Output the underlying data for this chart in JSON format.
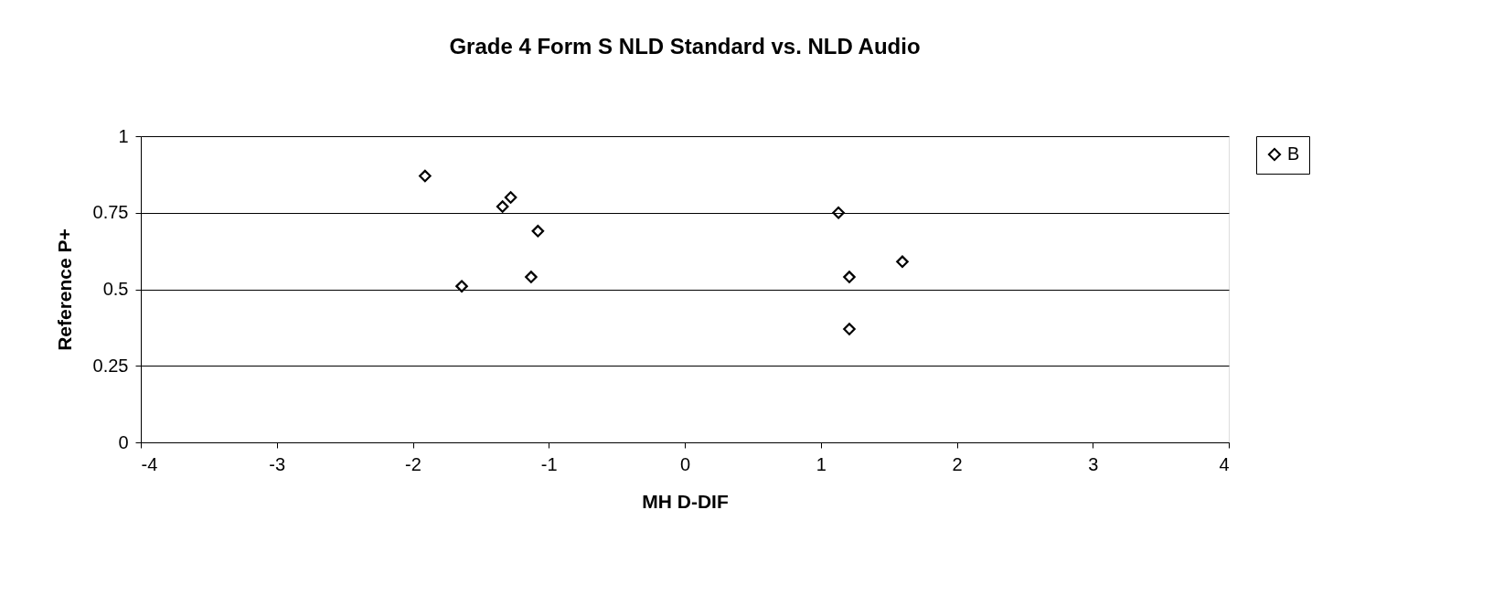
{
  "chart_data": {
    "type": "scatter",
    "title": "Grade 4 Form S NLD Standard vs. NLD Audio",
    "xlabel": "MH D-DIF",
    "ylabel": "Reference P+",
    "series": [
      {
        "name": "B",
        "color": "#000000",
        "x": [
          -1.91,
          -1.28,
          -1.34,
          -1.08,
          -1.64,
          -1.13,
          1.13,
          1.6,
          1.21,
          1.21
        ],
        "values": [
          0.87,
          0.8,
          0.77,
          0.69,
          0.51,
          0.54,
          0.75,
          0.59,
          0.54,
          0.37
        ]
      }
    ],
    "xlim": [
      -4,
      4
    ],
    "xticks": [
      -4,
      -3,
      -2,
      -1,
      0,
      1,
      2,
      3,
      4
    ],
    "ylim": [
      0,
      1
    ],
    "yticks": [
      0,
      {
        "value": 0.25,
        "label": "0.25"
      },
      {
        "value": 0.5,
        "label": "0.5"
      },
      {
        "value": 0.75,
        "label": "0.75"
      },
      1
    ],
    "grid": "y",
    "legend": "right",
    "marker": "diamond"
  }
}
